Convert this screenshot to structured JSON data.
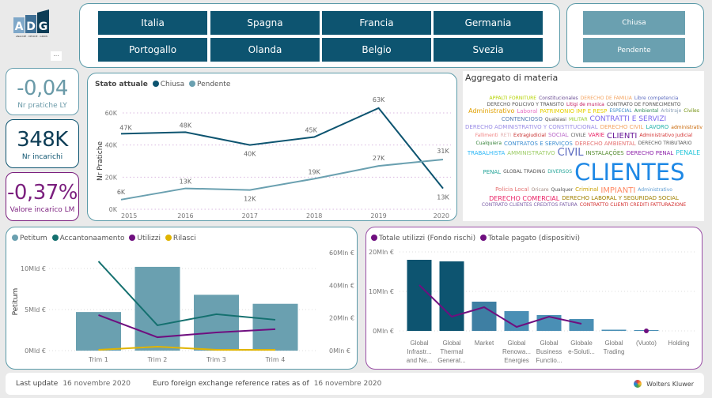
{
  "logo": {
    "text": "ADG",
    "tagline": "ANALYZE · DECIDE · GROW"
  },
  "more_label": "...",
  "filters": {
    "countries": [
      "Italia",
      "Spagna",
      "Francia",
      "Germania",
      "Portogallo",
      "Olanda",
      "Belgio",
      "Svezia"
    ],
    "status": [
      "Chiusa",
      "Pendente"
    ]
  },
  "kpis": [
    {
      "value": "-0,04",
      "label": "Nr pratiche LY",
      "color": "#6a9aa8"
    },
    {
      "value": "348K",
      "label": "Nr incarichi",
      "color": "#0d3d56"
    },
    {
      "value": "-0,37%",
      "label": "Valore incarico LM",
      "color": "#7b1f7e"
    }
  ],
  "wordcloud": {
    "title": "Aggregato di materia",
    "words": [
      "APPALTI FORNITURE",
      "Constitucionales",
      "DERECHO DE FAMILIA",
      "Libre competencia",
      "DERECHO POLICIVO Y TRANSITO",
      "Litigi de munica",
      "CONTRATO DE FORNECIMENTO",
      "Administrativo",
      "Laboral",
      "PATRIMONIO IMP E RESP",
      "ESPECIAL",
      "Ambiental",
      "Arbitraje",
      "Civiles",
      "CONTENCIOSO",
      "Qualsiasi",
      "MILITAR",
      "CONTRATTI E SERVIZI",
      "DERECHO ADMINISTRATIVO Y CONSTITUCIONAL",
      "DERECHO CIVIL",
      "LAVORO",
      "administrativ",
      "Fallimenti",
      "RETI",
      "Extragiudicial",
      "SOCIAL",
      "CIVILE",
      "VARIE",
      "CLIENTI",
      "Administrativo Judicial",
      "Cualquiera",
      "CONTRATOS E SERVIÇOS",
      "DERECHO AMBIENTAL",
      "DERECHO TRIBUTARIO",
      "TRABALHISTA",
      "AMMINISTRATIVO",
      "CIVIL",
      "INSTALAÇÕES",
      "DERECHO PENAL",
      "PENALE",
      "PENAL",
      "GLOBAL TRADING",
      "DIVERSOS",
      "CLIENTES",
      "Policia Local",
      "Oricare",
      "Qualquer",
      "Criminal",
      "IMPIANTI",
      "Administrativo",
      "DERECHO COMERCIAL",
      "DERECHO LABORAL Y SEGURIDAD SOCIAL",
      "CONTRATO CLIENTES CREDITOS FATURA",
      "CONTRATTO CLIENTI CREDITI FATTURAZIONE"
    ]
  },
  "chart_data": [
    {
      "type": "line",
      "legend_title": "Stato attuale",
      "ylabel": "Nr Pratiche",
      "x": [
        "2015",
        "2016",
        "2017",
        "2018",
        "2019",
        "2020"
      ],
      "ylim": [
        0,
        60000
      ],
      "yticks": [
        "0K",
        "20K",
        "40K",
        "60K"
      ],
      "grid": true,
      "legend": "top-left",
      "series": [
        {
          "name": "Chiusa",
          "color": "#0d5470",
          "values": [
            47000,
            48000,
            40000,
            45000,
            63000,
            13000
          ],
          "labels": [
            "47K",
            "48K",
            "40K",
            "45K",
            "63K",
            "13K"
          ]
        },
        {
          "name": "Pendente",
          "color": "#6aa0b0",
          "values": [
            6000,
            13000,
            12000,
            19000,
            27000,
            31000
          ],
          "labels": [
            "6K",
            "13K",
            "12K",
            "19K",
            "27K",
            "31K"
          ]
        }
      ]
    },
    {
      "type": "bar+line",
      "categories": [
        "Trim 1",
        "Trim 2",
        "Trim 3",
        "Trim 4"
      ],
      "ylabel": "Petitum",
      "ylim": [
        0,
        12
      ],
      "yticks": [
        "0Mld €",
        "5Mld €",
        "10Mld €"
      ],
      "y2lim": [
        0,
        60
      ],
      "y2ticks": [
        "0Mln €",
        "20Mln €",
        "40Mln €",
        "60Mln €"
      ],
      "legend": "top-left",
      "bars": {
        "name": "Petitum",
        "color": "#6aa0b0",
        "values": [
          4.7,
          10.2,
          6.8,
          5.7
        ]
      },
      "lines": [
        {
          "name": "Accantonaamento",
          "color": "#14706f",
          "values": [
            54.7,
            15.5,
            22.3,
            18.9
          ]
        },
        {
          "name": "Utilizzi",
          "color": "#6f0f7f",
          "values": [
            21.8,
            8.2,
            11.1,
            13.1
          ]
        },
        {
          "name": "Rilasci",
          "color": "#e0b400",
          "values": [
            0.5,
            2.4,
            0.5,
            0.5
          ]
        }
      ]
    },
    {
      "type": "bar+line",
      "categories": [
        [
          "Global",
          "Infrastr...",
          "and Ne..."
        ],
        [
          "Global",
          "Thermal",
          "Generat..."
        ],
        [
          "Market"
        ],
        [
          "Global",
          "Renowa...",
          "Energies"
        ],
        [
          "Global",
          "Business",
          "Functio..."
        ],
        [
          "Globale",
          "e-Soluti..."
        ],
        [
          "Global",
          "Trading"
        ],
        [
          "(Vuoto)"
        ],
        [
          "Holding"
        ]
      ],
      "ylim": [
        0,
        20
      ],
      "yticks": [
        "0Mln €",
        "10Mln €",
        "20Mln €"
      ],
      "legend": "top-left",
      "bars": {
        "name": "Totale utilizzi (Fondo rischi)",
        "color": "#4a8fb5",
        "values": [
          18.0,
          17.6,
          7.4,
          5.0,
          4.0,
          3.0,
          0.3,
          0.2,
          0
        ]
      },
      "lines": [
        {
          "name": "Totale pagato (dispositivi)",
          "color": "#6f0f7f",
          "values": [
            11.6,
            3.6,
            6.0,
            1.0,
            3.6,
            1.8,
            null,
            0,
            null
          ]
        }
      ]
    }
  ],
  "footer": {
    "last_update_label": "Last update",
    "last_update": "16 novembre 2020",
    "fx_label": "Euro foreign exchange reference rates as of",
    "fx_date": "16 novembre 2020",
    "brand": "Wolters Kluwer"
  }
}
